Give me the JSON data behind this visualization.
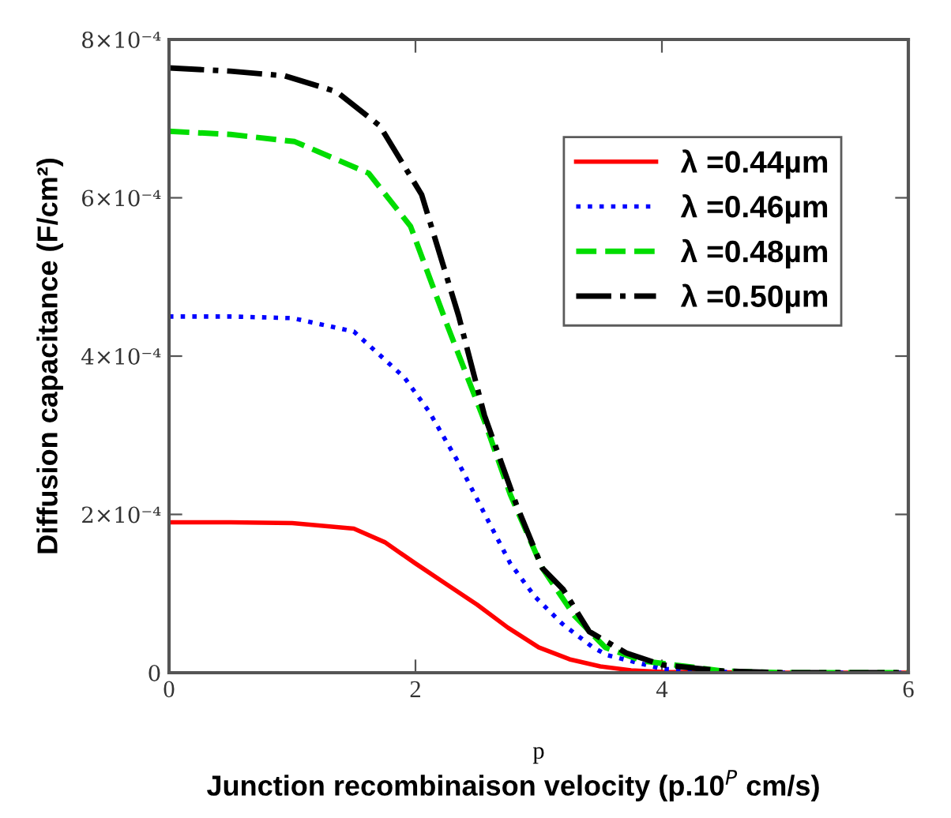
{
  "chart_data": {
    "type": "line",
    "xlabel": "p",
    "ylabel": "Diffusion capacitance (F/cm²)",
    "annotations": [
      "Junction recombinaison velocity (p.10$^{P}$ cm/s)"
    ],
    "xlim": [
      0,
      6
    ],
    "xticks": [
      0,
      2,
      4,
      6
    ],
    "ylim": [
      0,
      0.0008
    ],
    "yticks": [
      {
        "value": 0,
        "label": "0"
      },
      {
        "value": 0.0002,
        "label": "2×10⁻⁴"
      },
      {
        "value": 0.0004,
        "label": "4×10⁻⁴"
      },
      {
        "value": 0.0006,
        "label": "6×10⁻⁴"
      },
      {
        "value": 0.0008,
        "label": "8×10⁻⁴"
      }
    ],
    "grid": false,
    "legend": "top right",
    "marker": "none",
    "series": [
      {
        "name": "λ =0.44µm",
        "color": "#ff0000",
        "line_style": "solid",
        "x": [
          0,
          0.5,
          1,
          1.5,
          1.75,
          2,
          2.25,
          2.5,
          2.75,
          3,
          3.25,
          3.5,
          3.75,
          4,
          5,
          6
        ],
        "values": [
          0.00019,
          0.00019,
          0.000189,
          0.000182,
          0.000165,
          0.000138,
          0.000112,
          8.6e-05,
          5.7e-05,
          3.2e-05,
          1.7e-05,
          8e-06,
          3e-06,
          1e-06,
          0,
          0
        ]
      },
      {
        "name": "λ =0.46µm",
        "color": "#0000ff",
        "line_style": "dotted",
        "x": [
          0,
          0.5,
          1,
          1.5,
          1.91,
          2.11,
          2.34,
          2.55,
          2.77,
          2.97,
          3.19,
          3.44,
          3.56,
          4,
          4.5,
          5,
          6
        ],
        "values": [
          0.00045,
          0.00045,
          0.000448,
          0.000431,
          0.000373,
          0.00033,
          0.000268,
          0.000204,
          0.000138,
          9.6e-05,
          6.2e-05,
          3.2e-05,
          2.2e-05,
          5e-06,
          1e-06,
          0,
          0
        ]
      },
      {
        "name": "λ =0.48µm",
        "color": "#00dd00",
        "line_style": "dashed",
        "x": [
          0,
          0.5,
          1.02,
          1.62,
          1.96,
          2.26,
          2.56,
          2.77,
          3.03,
          3.29,
          3.54,
          3.84,
          4.5,
          5,
          6
        ],
        "values": [
          0.000684,
          0.00068,
          0.000671,
          0.000631,
          0.000564,
          0.000438,
          0.000318,
          0.000225,
          0.000132,
          7.2e-05,
          3.2e-05,
          1.5e-05,
          2e-06,
          0,
          0
        ]
      },
      {
        "name": "λ =0.50µm",
        "color": "#000000",
        "line_style": "dashdot",
        "x": [
          0,
          0.5,
          0.94,
          1.36,
          1.71,
          2.05,
          2.35,
          2.56,
          2.82,
          3.03,
          3.2,
          3.41,
          3.71,
          4,
          4.5,
          5,
          6
        ],
        "values": [
          0.000764,
          0.00076,
          0.000754,
          0.000734,
          0.000691,
          0.000604,
          0.000451,
          0.000325,
          0.000212,
          0.000132,
          0.000105,
          5.2e-05,
          2.5e-05,
          1e-05,
          2e-06,
          0,
          0
        ]
      }
    ]
  }
}
